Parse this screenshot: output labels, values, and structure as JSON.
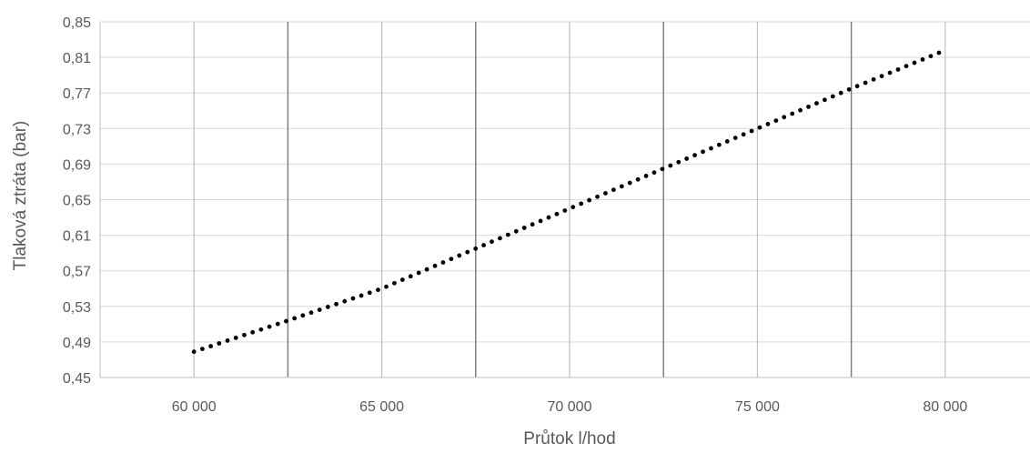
{
  "chart_data": {
    "type": "scatter",
    "xlabel": "Průtok  l/hod",
    "ylabel": "Tlaková ztráta  (bar)",
    "xlim": [
      57500,
      82500
    ],
    "ylim": [
      0.45,
      0.85
    ],
    "x_ticks": [
      60000,
      65000,
      70000,
      75000,
      80000
    ],
    "x_tick_labels": [
      "60 000",
      "65 000",
      "70 000",
      "75 000",
      "80 000"
    ],
    "y_ticks": [
      0.45,
      0.49,
      0.53,
      0.57,
      0.61,
      0.65,
      0.69,
      0.73,
      0.77,
      0.81,
      0.85
    ],
    "y_tick_labels": [
      "0,45",
      "0,49",
      "0,53",
      "0,57",
      "0,61",
      "0,65",
      "0,69",
      "0,73",
      "0,77",
      "0,81",
      "0,85"
    ],
    "grid": true,
    "series": [
      {
        "marker_color": "#000000",
        "x": [
          60000,
          62500,
          65000,
          67500,
          70000,
          72500,
          75000,
          77500,
          80000
        ],
        "y": [
          0.479,
          0.514,
          0.55,
          0.595,
          0.64,
          0.685,
          0.73,
          0.775,
          0.818
        ]
      }
    ]
  }
}
